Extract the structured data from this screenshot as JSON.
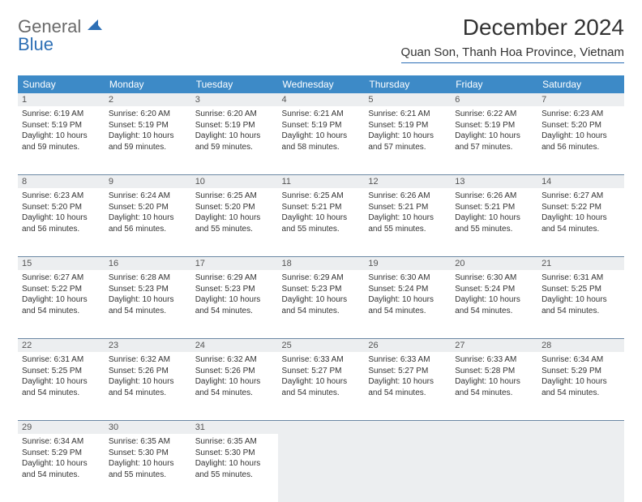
{
  "logo": {
    "line1": "General",
    "line2": "Blue"
  },
  "title": "December 2024",
  "subtitle": "Quan Son, Thanh Hoa Province, Vietnam",
  "colors": {
    "header_bg": "#3d8ac7",
    "accent": "#2d6fb5",
    "day_bg": "#eceef0",
    "text": "#333333"
  },
  "daynames": [
    "Sunday",
    "Monday",
    "Tuesday",
    "Wednesday",
    "Thursday",
    "Friday",
    "Saturday"
  ],
  "weeks": [
    [
      {
        "n": "1",
        "sr": "6:19 AM",
        "ss": "5:19 PM",
        "dl": "10 hours and 59 minutes."
      },
      {
        "n": "2",
        "sr": "6:20 AM",
        "ss": "5:19 PM",
        "dl": "10 hours and 59 minutes."
      },
      {
        "n": "3",
        "sr": "6:20 AM",
        "ss": "5:19 PM",
        "dl": "10 hours and 59 minutes."
      },
      {
        "n": "4",
        "sr": "6:21 AM",
        "ss": "5:19 PM",
        "dl": "10 hours and 58 minutes."
      },
      {
        "n": "5",
        "sr": "6:21 AM",
        "ss": "5:19 PM",
        "dl": "10 hours and 57 minutes."
      },
      {
        "n": "6",
        "sr": "6:22 AM",
        "ss": "5:19 PM",
        "dl": "10 hours and 57 minutes."
      },
      {
        "n": "7",
        "sr": "6:23 AM",
        "ss": "5:20 PM",
        "dl": "10 hours and 56 minutes."
      }
    ],
    [
      {
        "n": "8",
        "sr": "6:23 AM",
        "ss": "5:20 PM",
        "dl": "10 hours and 56 minutes."
      },
      {
        "n": "9",
        "sr": "6:24 AM",
        "ss": "5:20 PM",
        "dl": "10 hours and 56 minutes."
      },
      {
        "n": "10",
        "sr": "6:25 AM",
        "ss": "5:20 PM",
        "dl": "10 hours and 55 minutes."
      },
      {
        "n": "11",
        "sr": "6:25 AM",
        "ss": "5:21 PM",
        "dl": "10 hours and 55 minutes."
      },
      {
        "n": "12",
        "sr": "6:26 AM",
        "ss": "5:21 PM",
        "dl": "10 hours and 55 minutes."
      },
      {
        "n": "13",
        "sr": "6:26 AM",
        "ss": "5:21 PM",
        "dl": "10 hours and 55 minutes."
      },
      {
        "n": "14",
        "sr": "6:27 AM",
        "ss": "5:22 PM",
        "dl": "10 hours and 54 minutes."
      }
    ],
    [
      {
        "n": "15",
        "sr": "6:27 AM",
        "ss": "5:22 PM",
        "dl": "10 hours and 54 minutes."
      },
      {
        "n": "16",
        "sr": "6:28 AM",
        "ss": "5:23 PM",
        "dl": "10 hours and 54 minutes."
      },
      {
        "n": "17",
        "sr": "6:29 AM",
        "ss": "5:23 PM",
        "dl": "10 hours and 54 minutes."
      },
      {
        "n": "18",
        "sr": "6:29 AM",
        "ss": "5:23 PM",
        "dl": "10 hours and 54 minutes."
      },
      {
        "n": "19",
        "sr": "6:30 AM",
        "ss": "5:24 PM",
        "dl": "10 hours and 54 minutes."
      },
      {
        "n": "20",
        "sr": "6:30 AM",
        "ss": "5:24 PM",
        "dl": "10 hours and 54 minutes."
      },
      {
        "n": "21",
        "sr": "6:31 AM",
        "ss": "5:25 PM",
        "dl": "10 hours and 54 minutes."
      }
    ],
    [
      {
        "n": "22",
        "sr": "6:31 AM",
        "ss": "5:25 PM",
        "dl": "10 hours and 54 minutes."
      },
      {
        "n": "23",
        "sr": "6:32 AM",
        "ss": "5:26 PM",
        "dl": "10 hours and 54 minutes."
      },
      {
        "n": "24",
        "sr": "6:32 AM",
        "ss": "5:26 PM",
        "dl": "10 hours and 54 minutes."
      },
      {
        "n": "25",
        "sr": "6:33 AM",
        "ss": "5:27 PM",
        "dl": "10 hours and 54 minutes."
      },
      {
        "n": "26",
        "sr": "6:33 AM",
        "ss": "5:27 PM",
        "dl": "10 hours and 54 minutes."
      },
      {
        "n": "27",
        "sr": "6:33 AM",
        "ss": "5:28 PM",
        "dl": "10 hours and 54 minutes."
      },
      {
        "n": "28",
        "sr": "6:34 AM",
        "ss": "5:29 PM",
        "dl": "10 hours and 54 minutes."
      }
    ],
    [
      {
        "n": "29",
        "sr": "6:34 AM",
        "ss": "5:29 PM",
        "dl": "10 hours and 54 minutes."
      },
      {
        "n": "30",
        "sr": "6:35 AM",
        "ss": "5:30 PM",
        "dl": "10 hours and 55 minutes."
      },
      {
        "n": "31",
        "sr": "6:35 AM",
        "ss": "5:30 PM",
        "dl": "10 hours and 55 minutes."
      },
      null,
      null,
      null,
      null
    ]
  ],
  "labels": {
    "sunrise": "Sunrise:",
    "sunset": "Sunset:",
    "daylight": "Daylight:"
  }
}
